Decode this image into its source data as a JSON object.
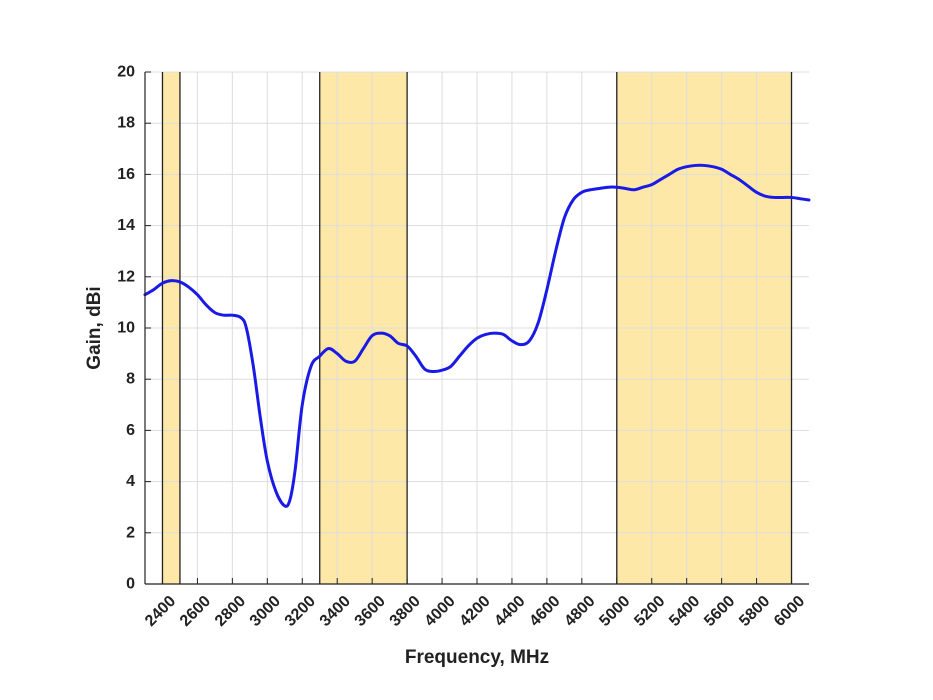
{
  "chart_data": {
    "type": "line",
    "title": "",
    "xlabel": "Frequency, MHz",
    "ylabel": "Gain, dBi",
    "xlim": [
      2300,
      6100
    ],
    "ylim": [
      0,
      20
    ],
    "grid": true,
    "x_ticks": [
      2400,
      2600,
      2800,
      3000,
      3200,
      3400,
      3600,
      3800,
      4000,
      4200,
      4400,
      4600,
      4800,
      5000,
      5200,
      5400,
      5600,
      5800,
      6000
    ],
    "y_ticks": [
      0,
      2,
      4,
      6,
      8,
      10,
      12,
      14,
      16,
      18,
      20
    ],
    "highlight_bands": [
      {
        "from": 2400,
        "to": 2500
      },
      {
        "from": 3300,
        "to": 3800
      },
      {
        "from": 5000,
        "to": 6000
      }
    ],
    "colors": {
      "line": "#1a1ae6",
      "band_fill": "#fde8a8",
      "band_edge": "#222222",
      "grid": "#dddddd",
      "axis": "#222222"
    },
    "series": [
      {
        "x": [
          2300,
          2350,
          2400,
          2450,
          2500,
          2550,
          2600,
          2650,
          2700,
          2750,
          2800,
          2850,
          2880,
          2920,
          2960,
          3000,
          3050,
          3100,
          3130,
          3160,
          3200,
          3250,
          3300,
          3350,
          3400,
          3450,
          3500,
          3550,
          3600,
          3650,
          3700,
          3750,
          3800,
          3850,
          3900,
          3950,
          4000,
          4050,
          4100,
          4150,
          4200,
          4250,
          4300,
          4350,
          4400,
          4450,
          4500,
          4550,
          4600,
          4650,
          4700,
          4750,
          4800,
          4850,
          4900,
          4950,
          5000,
          5050,
          5100,
          5150,
          5200,
          5250,
          5300,
          5350,
          5400,
          5450,
          5500,
          5550,
          5600,
          5650,
          5700,
          5750,
          5800,
          5850,
          5900,
          5950,
          6000,
          6050,
          6100
        ],
        "y": [
          11.3,
          11.5,
          11.75,
          11.85,
          11.8,
          11.6,
          11.3,
          10.9,
          10.6,
          10.5,
          10.5,
          10.4,
          10.0,
          8.5,
          6.5,
          4.8,
          3.6,
          3.05,
          3.3,
          4.5,
          7.0,
          8.5,
          8.9,
          9.2,
          9.0,
          8.7,
          8.7,
          9.2,
          9.7,
          9.8,
          9.7,
          9.4,
          9.3,
          8.9,
          8.4,
          8.3,
          8.35,
          8.5,
          8.9,
          9.3,
          9.6,
          9.75,
          9.8,
          9.75,
          9.5,
          9.35,
          9.5,
          10.2,
          11.5,
          13.0,
          14.3,
          15.0,
          15.3,
          15.4,
          15.45,
          15.5,
          15.5,
          15.45,
          15.4,
          15.5,
          15.6,
          15.8,
          16.0,
          16.2,
          16.3,
          16.35,
          16.35,
          16.3,
          16.2,
          16.0,
          15.8,
          15.55,
          15.3,
          15.15,
          15.1,
          15.1,
          15.1,
          15.05,
          15.0
        ]
      }
    ]
  }
}
